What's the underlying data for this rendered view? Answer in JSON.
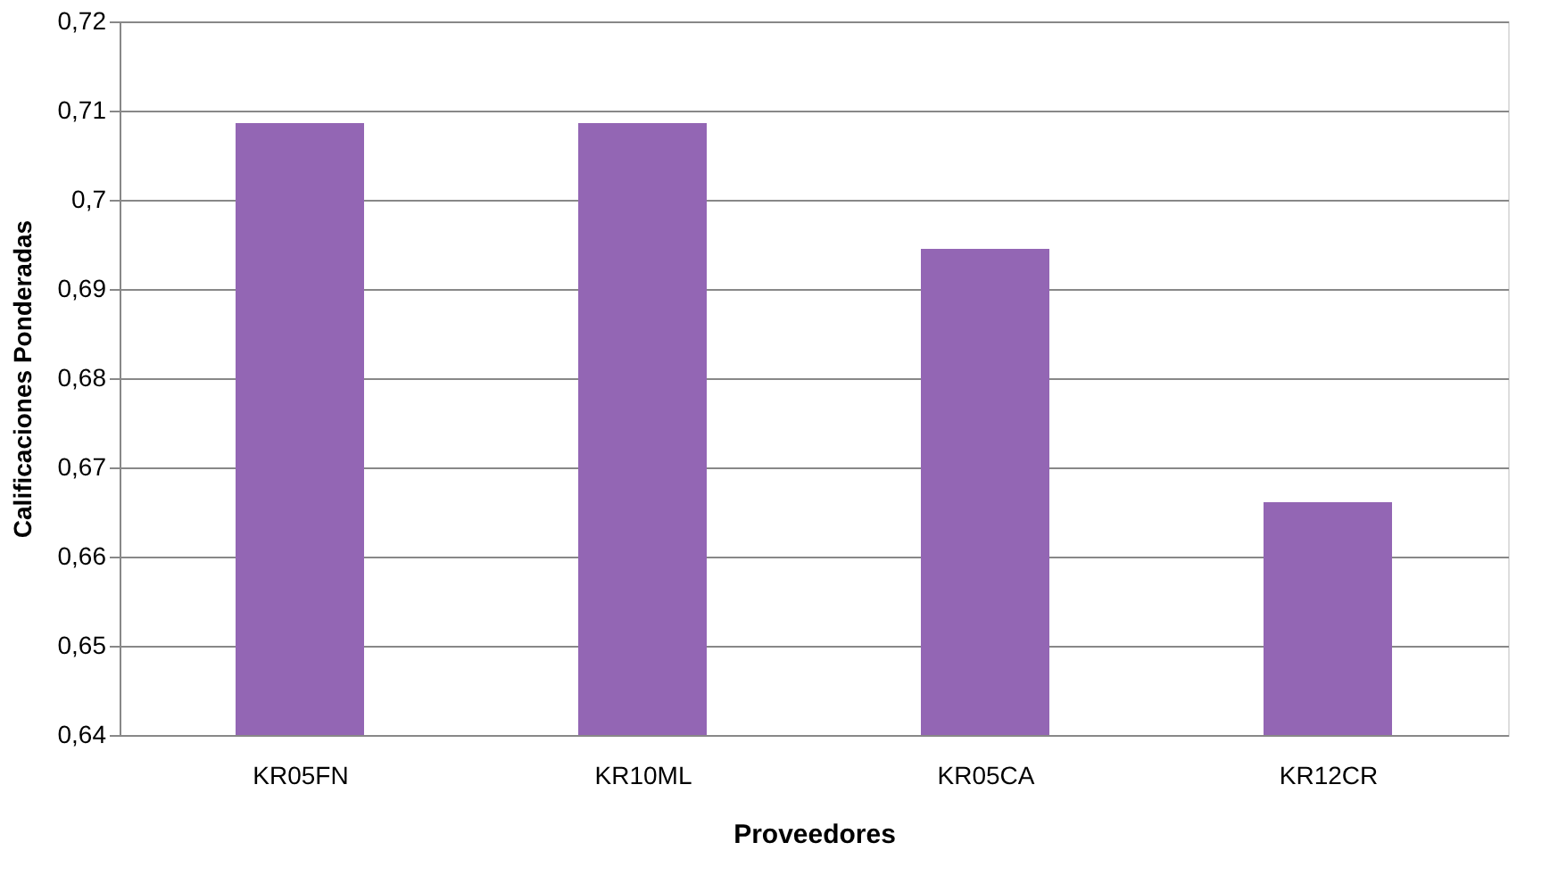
{
  "chart_data": {
    "type": "bar",
    "xlabel": "Proveedores",
    "ylabel": "Calificaciones  Ponderadas",
    "categories": [
      "KR05FN",
      "KR10ML",
      "KR05CA",
      "KR12CR"
    ],
    "values": [
      0.7086,
      0.7086,
      0.6945,
      0.6661
    ],
    "color": "#9366b4",
    "ylim": [
      0.64,
      0.72
    ],
    "yticks": [
      {
        "value": 0.64,
        "label": "0,64"
      },
      {
        "value": 0.65,
        "label": "0,65"
      },
      {
        "value": 0.66,
        "label": "0,66"
      },
      {
        "value": 0.67,
        "label": "0,67"
      },
      {
        "value": 0.68,
        "label": "0,68"
      },
      {
        "value": 0.69,
        "label": "0,69"
      },
      {
        "value": 0.7,
        "label": "0,7"
      },
      {
        "value": 0.71,
        "label": "0,71"
      },
      {
        "value": 0.72,
        "label": "0,72"
      }
    ],
    "grid": "y",
    "legend": false
  }
}
